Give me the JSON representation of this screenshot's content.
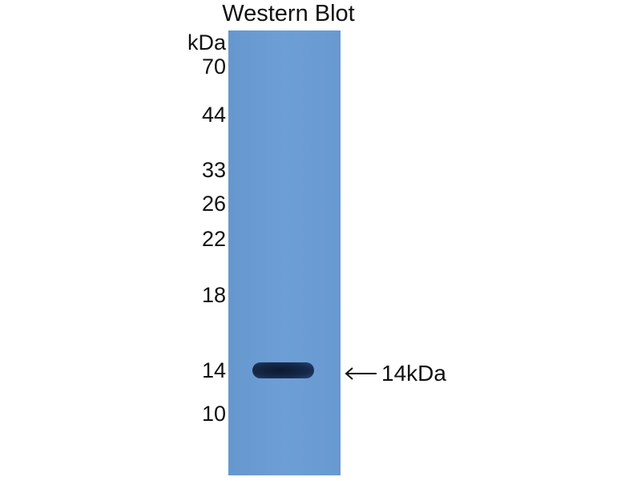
{
  "title": "Western Blot",
  "unit_label": "kDa",
  "markers": [
    "70",
    "44",
    "33",
    "26",
    "22",
    "18",
    "14",
    "10"
  ],
  "band_label": "14kDa",
  "colors": {
    "membrane": "#6a9bd3",
    "band": "#14264a"
  }
}
